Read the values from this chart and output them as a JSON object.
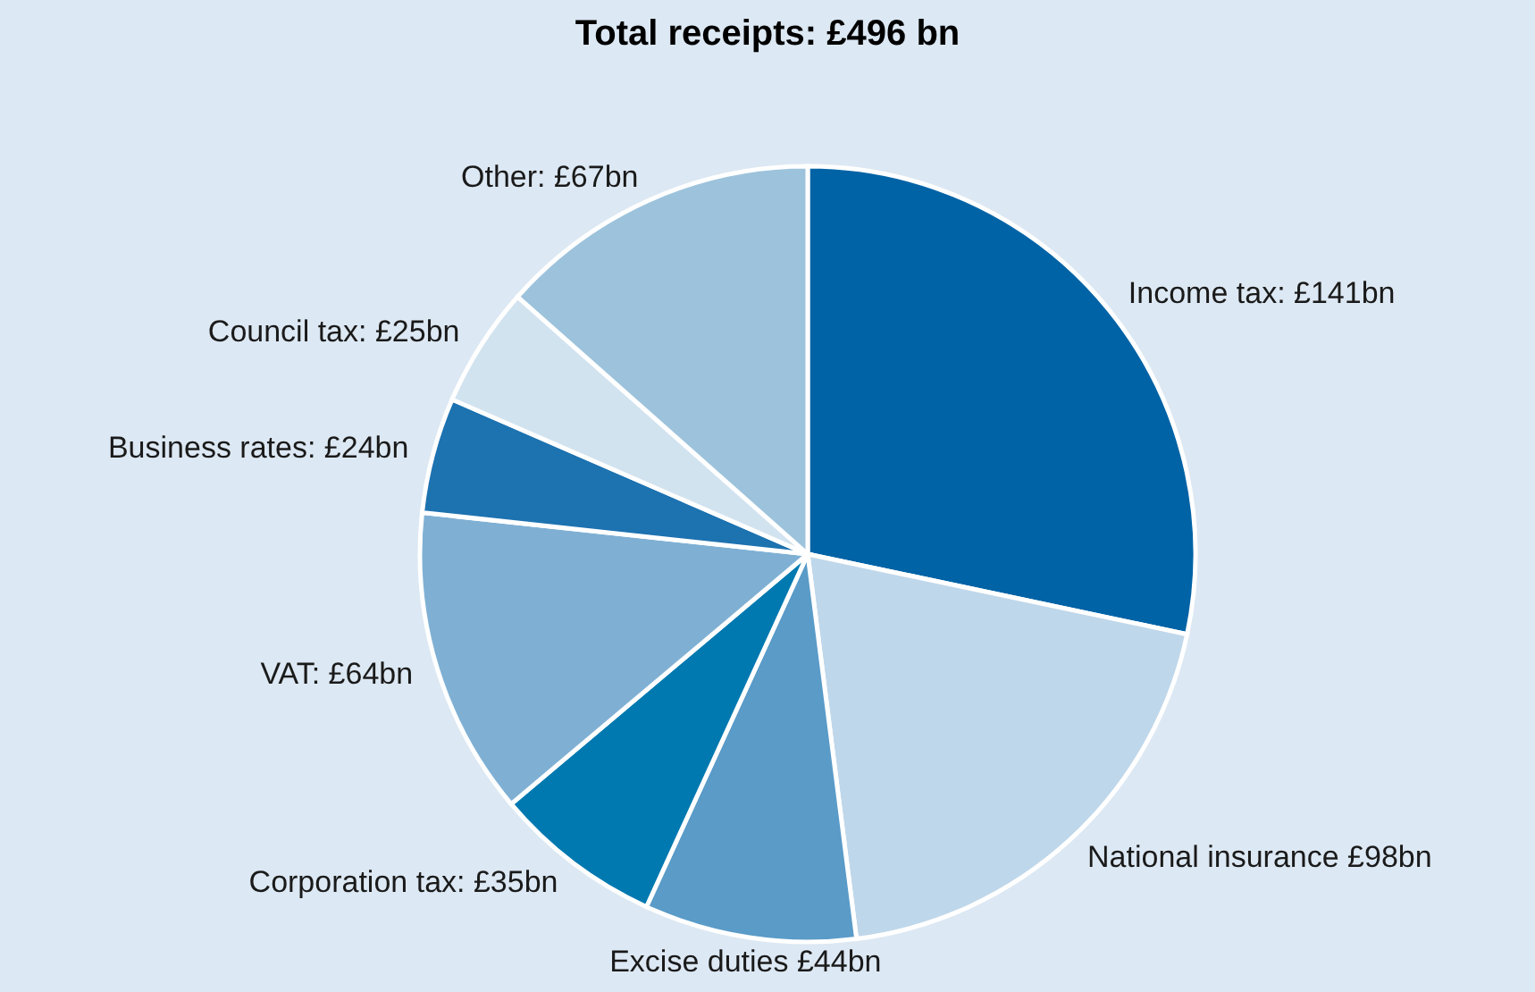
{
  "chart_data": {
    "type": "pie",
    "title": "Total receipts: £496 bn",
    "categories": [
      "Income tax: £141bn",
      "National insurance £98bn",
      "Excise duties £44bn",
      "Corporation tax: £35bn",
      "VAT: £64bn",
      "Business rates: £24bn",
      "Council tax: £25bn",
      "Other: £67bn"
    ],
    "values": [
      141,
      98,
      44,
      35,
      64,
      24,
      25,
      67
    ],
    "colors": [
      "#0063a6",
      "#bfd7ea",
      "#5a9bc8",
      "#0079b0",
      "#7fb0d4",
      "#1d72b0",
      "#d2e3f0",
      "#9dc3dc"
    ],
    "legend": false
  }
}
